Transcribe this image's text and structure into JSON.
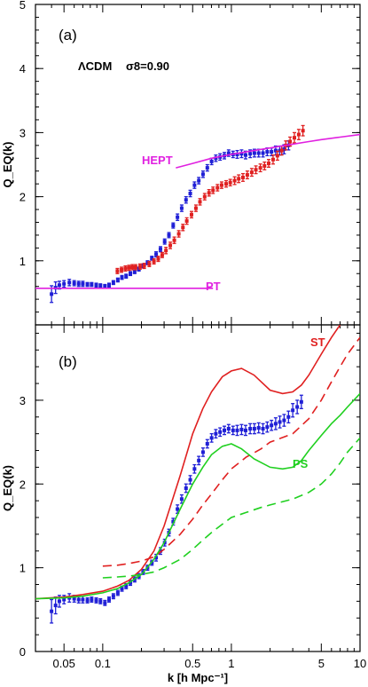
{
  "colors": {
    "blue": "#1f1fd6",
    "red": "#e02020",
    "magenta": "#e020e0",
    "green": "#20d020",
    "axis": "#000000"
  },
  "chart_data": [
    {
      "type": "scatter",
      "panel_label": "(a)",
      "xscale": "log",
      "xlim": [
        0.03,
        10
      ],
      "ylim": [
        0,
        5
      ],
      "xticks": [
        0.05,
        0.1,
        0.5,
        1,
        5,
        10
      ],
      "xtick_labels": [
        "",
        "",
        "",
        "",
        "",
        ""
      ],
      "yticks": [
        1,
        2,
        3,
        4,
        5
      ],
      "ytick_labels": [
        "1",
        "2",
        "3",
        "4",
        "5"
      ],
      "ylabel": "Q_EQ(k)",
      "annotations": [
        {
          "text": "ΛCDM",
          "color": "#000000"
        },
        {
          "text": "σ8=0.90",
          "color": "#000000"
        },
        {
          "text": "HEPT",
          "color": "#e020e0"
        },
        {
          "text": "PT",
          "color": "#e020e0"
        }
      ],
      "series": [
        {
          "kind": "points",
          "color": "#1f1fd6",
          "x": [
            0.04,
            0.043,
            0.046,
            0.05,
            0.055,
            0.06,
            0.065,
            0.07,
            0.076,
            0.082,
            0.089,
            0.096,
            0.104,
            0.112,
            0.121,
            0.131,
            0.141,
            0.152,
            0.164,
            0.177,
            0.191,
            0.206,
            0.223,
            0.241,
            0.26,
            0.281,
            0.303,
            0.327,
            0.353,
            0.381,
            0.411,
            0.444,
            0.479,
            0.517,
            0.558,
            0.602,
            0.65,
            0.702,
            0.757,
            0.817,
            0.882,
            0.952,
            1.03,
            1.11,
            1.2,
            1.29,
            1.4,
            1.51,
            1.63,
            1.76,
            1.9,
            2.05,
            2.21,
            2.38,
            2.57,
            2.78
          ],
          "y": [
            0.48,
            0.58,
            0.62,
            0.64,
            0.66,
            0.65,
            0.64,
            0.64,
            0.63,
            0.63,
            0.62,
            0.61,
            0.6,
            0.62,
            0.66,
            0.7,
            0.74,
            0.76,
            0.8,
            0.83,
            0.87,
            0.92,
            0.97,
            1.04,
            1.1,
            1.18,
            1.3,
            1.4,
            1.55,
            1.68,
            1.82,
            1.95,
            2.05,
            2.18,
            2.25,
            2.35,
            2.45,
            2.55,
            2.6,
            2.62,
            2.64,
            2.68,
            2.66,
            2.66,
            2.67,
            2.65,
            2.67,
            2.68,
            2.68,
            2.68,
            2.7,
            2.7,
            2.72,
            2.72,
            2.74,
            2.8
          ],
          "err": [
            0.13,
            0.09,
            0.06,
            0.05,
            0.05,
            0.04,
            0.04,
            0.04,
            0.03,
            0.03,
            0.03,
            0.03,
            0.03,
            0.03,
            0.03,
            0.03,
            0.03,
            0.03,
            0.03,
            0.03,
            0.03,
            0.03,
            0.03,
            0.03,
            0.04,
            0.04,
            0.04,
            0.04,
            0.04,
            0.05,
            0.05,
            0.05,
            0.05,
            0.05,
            0.05,
            0.05,
            0.05,
            0.05,
            0.05,
            0.05,
            0.05,
            0.05,
            0.05,
            0.06,
            0.06,
            0.06,
            0.06,
            0.06,
            0.06,
            0.06,
            0.06,
            0.06,
            0.07,
            0.07,
            0.07,
            0.07
          ]
        },
        {
          "kind": "points",
          "color": "#e02020",
          "x": [
            0.13,
            0.14,
            0.15,
            0.16,
            0.17,
            0.18,
            0.195,
            0.21,
            0.23,
            0.25,
            0.27,
            0.29,
            0.31,
            0.335,
            0.36,
            0.39,
            0.42,
            0.45,
            0.49,
            0.53,
            0.57,
            0.62,
            0.67,
            0.72,
            0.78,
            0.84,
            0.91,
            0.98,
            1.06,
            1.14,
            1.23,
            1.33,
            1.44,
            1.55,
            1.68,
            1.81,
            1.95,
            2.11,
            2.28,
            2.46,
            2.65,
            2.86,
            3.09,
            3.34,
            3.6
          ],
          "y": [
            0.84,
            0.86,
            0.88,
            0.89,
            0.9,
            0.9,
            0.91,
            0.92,
            0.95,
            0.99,
            1.03,
            1.09,
            1.16,
            1.24,
            1.32,
            1.42,
            1.52,
            1.62,
            1.72,
            1.82,
            1.92,
            2.0,
            2.06,
            2.1,
            2.14,
            2.18,
            2.2,
            2.22,
            2.25,
            2.28,
            2.3,
            2.34,
            2.38,
            2.42,
            2.45,
            2.48,
            2.52,
            2.58,
            2.64,
            2.72,
            2.8,
            2.86,
            2.92,
            2.97,
            3.03
          ],
          "err": [
            0.04,
            0.04,
            0.04,
            0.04,
            0.04,
            0.04,
            0.04,
            0.04,
            0.04,
            0.04,
            0.04,
            0.04,
            0.05,
            0.05,
            0.05,
            0.05,
            0.05,
            0.05,
            0.05,
            0.05,
            0.05,
            0.05,
            0.05,
            0.05,
            0.05,
            0.05,
            0.05,
            0.05,
            0.06,
            0.06,
            0.06,
            0.06,
            0.06,
            0.06,
            0.06,
            0.06,
            0.06,
            0.07,
            0.07,
            0.07,
            0.07,
            0.07,
            0.08,
            0.08,
            0.08
          ]
        },
        {
          "kind": "line",
          "name": "HEPT",
          "color": "#e020e0",
          "dash": false,
          "x": [
            0.37,
            0.5,
            0.7,
            1.0,
            1.5,
            2.0,
            3.0,
            4.0,
            5.0,
            7.0,
            10.0
          ],
          "y": [
            2.45,
            2.52,
            2.6,
            2.66,
            2.72,
            2.76,
            2.82,
            2.86,
            2.89,
            2.93,
            2.97
          ]
        },
        {
          "kind": "line",
          "name": "PT",
          "color": "#e020e0",
          "dash": false,
          "x": [
            0.03,
            0.1,
            0.5,
            0.72
          ],
          "y": [
            0.57,
            0.57,
            0.57,
            0.57
          ]
        }
      ]
    },
    {
      "type": "scatter",
      "panel_label": "(b)",
      "xscale": "log",
      "xlim": [
        0.03,
        10
      ],
      "ylim": [
        0,
        3.9
      ],
      "xticks": [
        0.05,
        0.1,
        0.5,
        1,
        5,
        10
      ],
      "xtick_labels": [
        "0.05",
        "0.1",
        "0.5",
        "1",
        "5",
        "10"
      ],
      "yticks": [
        0,
        1,
        2,
        3
      ],
      "ytick_labels": [
        "0",
        "1",
        "2",
        "3"
      ],
      "xlabel": "k [h Mpc⁻¹]",
      "ylabel": "Q_EQ(k)",
      "annotations": [
        {
          "text": "ST",
          "color": "#e02020"
        },
        {
          "text": "PS",
          "color": "#20d020"
        }
      ],
      "series": [
        {
          "kind": "points",
          "color": "#1f1fd6",
          "x": [
            0.04,
            0.043,
            0.046,
            0.05,
            0.055,
            0.06,
            0.065,
            0.07,
            0.076,
            0.082,
            0.089,
            0.096,
            0.104,
            0.112,
            0.121,
            0.131,
            0.141,
            0.152,
            0.164,
            0.177,
            0.191,
            0.206,
            0.223,
            0.241,
            0.26,
            0.281,
            0.303,
            0.327,
            0.353,
            0.381,
            0.411,
            0.444,
            0.479,
            0.517,
            0.558,
            0.602,
            0.65,
            0.702,
            0.757,
            0.817,
            0.882,
            0.952,
            1.03,
            1.11,
            1.2,
            1.29,
            1.4,
            1.51,
            1.63,
            1.76,
            1.9,
            2.05,
            2.21,
            2.38,
            2.57,
            2.78,
            3.0,
            3.25,
            3.5
          ],
          "y": [
            0.48,
            0.55,
            0.6,
            0.62,
            0.64,
            0.63,
            0.62,
            0.62,
            0.61,
            0.62,
            0.61,
            0.6,
            0.58,
            0.62,
            0.66,
            0.7,
            0.75,
            0.78,
            0.82,
            0.86,
            0.9,
            0.95,
            1.0,
            1.06,
            1.12,
            1.2,
            1.3,
            1.42,
            1.55,
            1.7,
            1.82,
            1.95,
            2.05,
            2.18,
            2.28,
            2.38,
            2.48,
            2.55,
            2.6,
            2.62,
            2.64,
            2.66,
            2.64,
            2.64,
            2.65,
            2.64,
            2.66,
            2.66,
            2.67,
            2.66,
            2.68,
            2.7,
            2.72,
            2.74,
            2.76,
            2.8,
            2.88,
            2.92,
            2.98
          ],
          "err": [
            0.14,
            0.1,
            0.07,
            0.05,
            0.05,
            0.04,
            0.04,
            0.04,
            0.03,
            0.03,
            0.03,
            0.03,
            0.03,
            0.03,
            0.03,
            0.03,
            0.03,
            0.03,
            0.03,
            0.03,
            0.03,
            0.03,
            0.03,
            0.03,
            0.04,
            0.04,
            0.04,
            0.04,
            0.04,
            0.05,
            0.05,
            0.05,
            0.05,
            0.05,
            0.05,
            0.05,
            0.05,
            0.05,
            0.05,
            0.05,
            0.05,
            0.05,
            0.05,
            0.06,
            0.06,
            0.06,
            0.06,
            0.06,
            0.06,
            0.06,
            0.06,
            0.06,
            0.07,
            0.07,
            0.07,
            0.07,
            0.08,
            0.08,
            0.08
          ]
        },
        {
          "kind": "line",
          "name": "ST",
          "color": "#e02020",
          "dash": false,
          "x": [
            0.03,
            0.05,
            0.07,
            0.1,
            0.13,
            0.16,
            0.2,
            0.25,
            0.3,
            0.4,
            0.5,
            0.6,
            0.7,
            0.85,
            1.0,
            1.2,
            1.5,
            2.0,
            2.5,
            3.0,
            3.5,
            4.0,
            5.0,
            6.0,
            7.0
          ],
          "y": [
            0.63,
            0.65,
            0.68,
            0.72,
            0.78,
            0.85,
            0.98,
            1.2,
            1.5,
            2.1,
            2.6,
            2.9,
            3.1,
            3.28,
            3.35,
            3.38,
            3.3,
            3.12,
            3.08,
            3.1,
            3.18,
            3.3,
            3.55,
            3.75,
            3.9
          ]
        },
        {
          "kind": "line",
          "name": "ST-dashed",
          "color": "#e02020",
          "dash": true,
          "x": [
            0.1,
            0.13,
            0.16,
            0.2,
            0.25,
            0.3,
            0.4,
            0.5,
            0.6,
            0.7,
            0.85,
            1.0,
            1.3,
            1.7,
            2.0,
            3.0,
            4.0,
            5.0,
            6.0,
            7.0,
            8.0,
            10.0
          ],
          "y": [
            1.02,
            1.03,
            1.05,
            1.08,
            1.13,
            1.22,
            1.4,
            1.58,
            1.75,
            1.88,
            2.05,
            2.18,
            2.32,
            2.42,
            2.5,
            2.6,
            2.78,
            3.0,
            3.22,
            3.4,
            3.55,
            3.75
          ]
        },
        {
          "kind": "line",
          "name": "PS",
          "color": "#20d020",
          "dash": false,
          "x": [
            0.03,
            0.05,
            0.07,
            0.1,
            0.13,
            0.16,
            0.2,
            0.25,
            0.3,
            0.4,
            0.5,
            0.6,
            0.7,
            0.85,
            1.0,
            1.2,
            1.5,
            2.0,
            2.5,
            3.0,
            3.5,
            4.0,
            5.0,
            6.0,
            7.0,
            8.0,
            10.0
          ],
          "y": [
            0.63,
            0.64,
            0.66,
            0.7,
            0.75,
            0.82,
            0.92,
            1.1,
            1.3,
            1.7,
            2.0,
            2.2,
            2.35,
            2.45,
            2.48,
            2.42,
            2.3,
            2.2,
            2.18,
            2.2,
            2.28,
            2.4,
            2.58,
            2.72,
            2.82,
            2.92,
            3.08
          ]
        },
        {
          "kind": "line",
          "name": "PS-dashed",
          "color": "#20d020",
          "dash": true,
          "x": [
            0.1,
            0.13,
            0.16,
            0.2,
            0.25,
            0.3,
            0.4,
            0.5,
            0.6,
            0.7,
            0.85,
            1.0,
            1.3,
            1.7,
            2.0,
            3.0,
            4.0,
            5.0,
            6.0,
            7.0,
            8.0,
            10.0
          ],
          "y": [
            0.88,
            0.89,
            0.9,
            0.92,
            0.95,
            1.0,
            1.1,
            1.22,
            1.33,
            1.42,
            1.52,
            1.6,
            1.66,
            1.72,
            1.75,
            1.82,
            1.9,
            2.0,
            2.12,
            2.25,
            2.38,
            2.55
          ]
        }
      ]
    }
  ]
}
